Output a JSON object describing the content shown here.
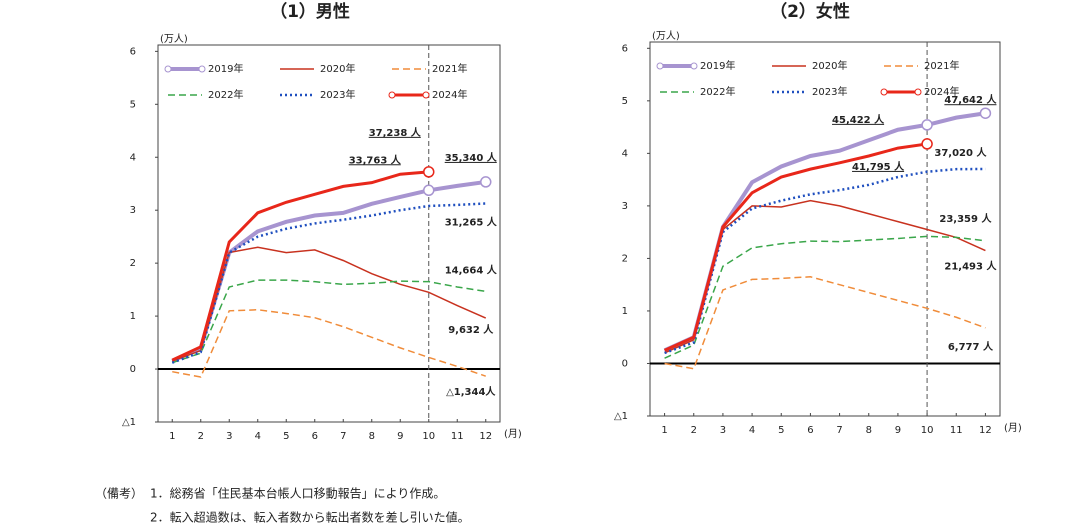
{
  "chart_data": [
    {
      "type": "line",
      "title": "（1）男性",
      "y_unit": "(万人)",
      "x_unit": "(月)",
      "x": [
        1,
        2,
        3,
        4,
        5,
        6,
        7,
        8,
        9,
        10,
        11,
        12
      ],
      "xlim": [
        0.5,
        12.5
      ],
      "xticks": [
        1,
        2,
        3,
        4,
        5,
        6,
        7,
        8,
        9,
        10,
        11,
        12
      ],
      "ylim": [
        -1,
        6.12
      ],
      "yticks": [
        {
          "value": -1,
          "label": "△1"
        },
        0,
        1,
        2,
        3,
        4,
        5,
        6
      ],
      "vline": 10,
      "legend": "top-left",
      "series": [
        {
          "name": "2019年",
          "color": "#a794d0",
          "width": 4,
          "dash": "solid",
          "marker": true,
          "values": [
            0.15,
            0.4,
            2.2,
            2.6,
            2.78,
            2.9,
            2.95,
            3.12,
            3.25,
            3.3763,
            3.46,
            3.534
          ],
          "value_labels": [
            null,
            null,
            null,
            null,
            null,
            null,
            null,
            null,
            null,
            "33,763 人",
            null,
            "35,340 人"
          ]
        },
        {
          "name": "2020年",
          "color": "#c8321f",
          "width": 1.5,
          "dash": "solid",
          "values": [
            0.15,
            0.35,
            2.2,
            2.3,
            2.2,
            2.25,
            2.05,
            1.8,
            1.6,
            1.45,
            1.2,
            0.9632
          ],
          "value_labels": [
            null,
            null,
            null,
            null,
            null,
            null,
            null,
            null,
            null,
            null,
            null,
            "9,632 人"
          ]
        },
        {
          "name": "2021年",
          "color": "#f08c3a",
          "width": 1.5,
          "dash": "dashed",
          "values": [
            -0.05,
            -0.15,
            1.1,
            1.12,
            1.05,
            0.97,
            0.8,
            0.6,
            0.4,
            0.22,
            0.05,
            -0.1344
          ],
          "value_labels": [
            null,
            null,
            null,
            null,
            null,
            null,
            null,
            null,
            null,
            null,
            null,
            "△1,344人"
          ]
        },
        {
          "name": "2022年",
          "color": "#3aa64a",
          "width": 1.5,
          "dash": "dashed",
          "values": [
            0.12,
            0.3,
            1.55,
            1.68,
            1.68,
            1.65,
            1.6,
            1.62,
            1.66,
            1.65,
            1.55,
            1.4664
          ],
          "value_labels": [
            null,
            null,
            null,
            null,
            null,
            null,
            null,
            null,
            null,
            null,
            null,
            "14,664 人"
          ]
        },
        {
          "name": "2023年",
          "color": "#1f4fbf",
          "width": 2.5,
          "dash": "dotted",
          "values": [
            0.12,
            0.32,
            2.2,
            2.5,
            2.65,
            2.75,
            2.82,
            2.9,
            3.0,
            3.08,
            3.1,
            3.1265
          ],
          "value_labels": [
            null,
            null,
            null,
            null,
            null,
            null,
            null,
            null,
            null,
            null,
            null,
            "31,265 人"
          ]
        },
        {
          "name": "2024年",
          "color": "#e8271a",
          "width": 3,
          "dash": "solid",
          "marker": true,
          "values": [
            0.17,
            0.42,
            2.4,
            2.95,
            3.15,
            3.3,
            3.45,
            3.52,
            3.68,
            3.7238,
            null,
            null
          ],
          "value_labels": [
            null,
            null,
            null,
            null,
            null,
            null,
            null,
            null,
            null,
            "37,238 人",
            null,
            null
          ]
        }
      ]
    },
    {
      "type": "line",
      "title": "（2）女性",
      "y_unit": "(万人)",
      "x_unit": "(月)",
      "x": [
        1,
        2,
        3,
        4,
        5,
        6,
        7,
        8,
        9,
        10,
        11,
        12
      ],
      "xlim": [
        0.5,
        12.5
      ],
      "xticks": [
        1,
        2,
        3,
        4,
        5,
        6,
        7,
        8,
        9,
        10,
        11,
        12
      ],
      "ylim": [
        -1,
        6.12
      ],
      "yticks": [
        {
          "value": -1,
          "label": "△1"
        },
        0,
        1,
        2,
        3,
        4,
        5,
        6
      ],
      "vline": 10,
      "legend": "top-left",
      "series": [
        {
          "name": "2019年",
          "color": "#a794d0",
          "width": 4,
          "dash": "solid",
          "marker": true,
          "values": [
            0.25,
            0.5,
            2.6,
            3.45,
            3.75,
            3.95,
            4.05,
            4.25,
            4.45,
            4.5422,
            4.68,
            4.7642
          ],
          "value_labels": [
            null,
            null,
            null,
            null,
            null,
            null,
            null,
            null,
            null,
            "45,422 人",
            null,
            "47,642 人"
          ]
        },
        {
          "name": "2020年",
          "color": "#c8321f",
          "width": 1.5,
          "dash": "solid",
          "values": [
            0.2,
            0.45,
            2.55,
            3.0,
            2.98,
            3.1,
            3.0,
            2.85,
            2.7,
            2.55,
            2.4,
            2.1493
          ],
          "value_labels": [
            null,
            null,
            null,
            null,
            null,
            null,
            null,
            null,
            null,
            null,
            null,
            "21,493 人"
          ]
        },
        {
          "name": "2021年",
          "color": "#f08c3a",
          "width": 1.5,
          "dash": "dashed",
          "values": [
            0.0,
            -0.1,
            1.4,
            1.6,
            1.62,
            1.65,
            1.5,
            1.35,
            1.2,
            1.05,
            0.88,
            0.6777
          ],
          "value_labels": [
            null,
            null,
            null,
            null,
            null,
            null,
            null,
            null,
            null,
            null,
            null,
            "6,777 人"
          ]
        },
        {
          "name": "2022年",
          "color": "#3aa64a",
          "width": 1.5,
          "dash": "dashed",
          "values": [
            0.1,
            0.35,
            1.85,
            2.2,
            2.28,
            2.33,
            2.32,
            2.35,
            2.38,
            2.42,
            2.4,
            2.3359
          ],
          "value_labels": [
            null,
            null,
            null,
            null,
            null,
            null,
            null,
            null,
            null,
            null,
            null,
            "23,359 人"
          ]
        },
        {
          "name": "2023年",
          "color": "#1f4fbf",
          "width": 2.5,
          "dash": "dotted",
          "values": [
            0.2,
            0.4,
            2.5,
            2.95,
            3.1,
            3.22,
            3.3,
            3.4,
            3.55,
            3.65,
            3.7,
            3.702
          ],
          "value_labels": [
            null,
            null,
            null,
            null,
            null,
            null,
            null,
            null,
            null,
            null,
            null,
            "37,020 人"
          ]
        },
        {
          "name": "2024年",
          "color": "#e8271a",
          "width": 3,
          "dash": "solid",
          "marker": true,
          "values": [
            0.25,
            0.5,
            2.6,
            3.25,
            3.55,
            3.7,
            3.82,
            3.95,
            4.1,
            4.1795,
            null,
            null
          ],
          "value_labels": [
            null,
            null,
            null,
            null,
            null,
            null,
            null,
            null,
            null,
            "41,795 人",
            null,
            null
          ]
        }
      ]
    }
  ],
  "notes": {
    "label": "（備考）",
    "items": [
      "1．総務省「住民基本台帳人口移動報告」により作成。",
      "2．転入超過数は、転入者数から転出者数を差し引いた値。"
    ]
  }
}
